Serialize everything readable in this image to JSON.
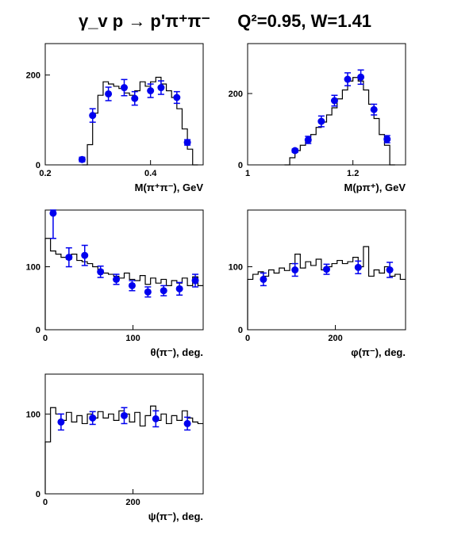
{
  "title": {
    "reaction": "γ_v p → p'π⁺π⁻",
    "kinematics": "Q²=0.95, W=1.41"
  },
  "colors": {
    "histogram": "#000000",
    "points": "#0000ee",
    "axes": "#000000"
  },
  "chart_data": [
    {
      "type": "line",
      "xlabel": "M(π⁺π⁻), GeV",
      "xlim": [
        0.2,
        0.5
      ],
      "ylim": [
        0,
        270
      ],
      "xticks": [
        {
          "v": 0.2,
          "label": "0.2"
        },
        {
          "v": 0.4,
          "label": "0.4"
        }
      ],
      "yticks": [
        {
          "v": 0,
          "label": "0"
        },
        {
          "v": 200,
          "label": "200"
        }
      ],
      "series": [
        {
          "kind": "histogram",
          "x": [
            0.27,
            0.28,
            0.29,
            0.3,
            0.31,
            0.32,
            0.33,
            0.34,
            0.35,
            0.36,
            0.37,
            0.38,
            0.39,
            0.4,
            0.41,
            0.42,
            0.43,
            0.44,
            0.45,
            0.46,
            0.47,
            0.48
          ],
          "y": [
            0,
            45,
            115,
            155,
            185,
            180,
            175,
            170,
            160,
            155,
            165,
            185,
            175,
            185,
            195,
            180,
            165,
            150,
            125,
            80,
            35,
            0
          ]
        },
        {
          "kind": "points",
          "x": [
            0.27,
            0.29,
            0.32,
            0.35,
            0.37,
            0.4,
            0.42,
            0.45,
            0.47
          ],
          "y": [
            12,
            110,
            158,
            172,
            148,
            165,
            172,
            150,
            50
          ],
          "err": [
            5,
            15,
            15,
            18,
            15,
            15,
            15,
            13,
            6
          ]
        }
      ]
    },
    {
      "type": "line",
      "xlabel": "M(pπ⁺), GeV",
      "xlim": [
        1.0,
        1.3
      ],
      "ylim": [
        0,
        340
      ],
      "xticks": [
        {
          "v": 1.0,
          "label": "1"
        },
        {
          "v": 1.2,
          "label": "1.2"
        }
      ],
      "yticks": [
        {
          "v": 0,
          "label": "0"
        },
        {
          "v": 200,
          "label": "200"
        }
      ],
      "series": [
        {
          "kind": "histogram",
          "x": [
            1.07,
            1.08,
            1.09,
            1.1,
            1.11,
            1.12,
            1.13,
            1.14,
            1.15,
            1.16,
            1.17,
            1.18,
            1.19,
            1.2,
            1.21,
            1.22,
            1.23,
            1.24,
            1.25,
            1.26,
            1.27
          ],
          "y": [
            0,
            20,
            40,
            55,
            65,
            85,
            105,
            120,
            140,
            160,
            185,
            210,
            235,
            245,
            235,
            210,
            170,
            130,
            85,
            55,
            0
          ]
        },
        {
          "kind": "points",
          "x": [
            1.09,
            1.115,
            1.14,
            1.165,
            1.19,
            1.215,
            1.24,
            1.265
          ],
          "y": [
            40,
            70,
            122,
            180,
            240,
            246,
            155,
            72
          ],
          "err": [
            5,
            10,
            15,
            15,
            18,
            20,
            15,
            10
          ]
        }
      ]
    },
    {
      "type": "line",
      "xlabel": "θ(π⁻), deg.",
      "xlim": [
        0,
        180
      ],
      "ylim": [
        0,
        190
      ],
      "xticks": [
        {
          "v": 0,
          "label": "0"
        },
        {
          "v": 100,
          "label": "100"
        }
      ],
      "yticks": [
        {
          "v": 0,
          "label": "0"
        },
        {
          "v": 100,
          "label": "100"
        }
      ],
      "series": [
        {
          "kind": "histogram",
          "x": [
            0,
            6,
            12,
            18,
            24,
            30,
            36,
            42,
            48,
            54,
            60,
            66,
            72,
            78,
            84,
            90,
            96,
            102,
            108,
            114,
            120,
            126,
            132,
            138,
            144,
            150,
            156,
            162,
            168,
            174
          ],
          "y": [
            145,
            125,
            120,
            115,
            112,
            120,
            110,
            108,
            105,
            100,
            95,
            90,
            88,
            85,
            82,
            90,
            80,
            78,
            86,
            72,
            82,
            74,
            80,
            70,
            78,
            74,
            82,
            70,
            84,
            70
          ]
        },
        {
          "kind": "points",
          "x": [
            9,
            27,
            45,
            63,
            81,
            99,
            117,
            135,
            153,
            171
          ],
          "y": [
            185,
            115,
            118,
            92,
            80,
            70,
            60,
            62,
            65,
            78
          ],
          "err": [
            40,
            15,
            16,
            9,
            8,
            8,
            8,
            8,
            10,
            10
          ]
        }
      ]
    },
    {
      "type": "line",
      "xlabel": "φ(π⁻), deg.",
      "xlim": [
        0,
        360
      ],
      "ylim": [
        0,
        190
      ],
      "xticks": [
        {
          "v": 0,
          "label": "0"
        },
        {
          "v": 200,
          "label": "200"
        }
      ],
      "yticks": [
        {
          "v": 0,
          "label": "0"
        },
        {
          "v": 100,
          "label": "100"
        }
      ],
      "series": [
        {
          "kind": "histogram",
          "x": [
            0,
            12,
            24,
            36,
            48,
            60,
            72,
            84,
            96,
            108,
            120,
            132,
            144,
            156,
            168,
            180,
            192,
            204,
            216,
            228,
            240,
            252,
            264,
            276,
            288,
            300,
            312,
            324,
            336,
            348
          ],
          "y": [
            80,
            88,
            92,
            85,
            95,
            90,
            98,
            94,
            105,
            120,
            98,
            108,
            102,
            112,
            95,
            100,
            105,
            110,
            105,
            108,
            115,
            100,
            132,
            85,
            95,
            90,
            100,
            85,
            88,
            80
          ]
        },
        {
          "kind": "points",
          "x": [
            36,
            108,
            180,
            252,
            324
          ],
          "y": [
            80,
            95,
            96,
            99,
            95
          ],
          "err": [
            10,
            10,
            8,
            10,
            12
          ]
        }
      ]
    },
    {
      "type": "line",
      "xlabel": "ψ(π⁻), deg.",
      "xlim": [
        0,
        360
      ],
      "ylim": [
        0,
        150
      ],
      "xticks": [
        {
          "v": 0,
          "label": "0"
        },
        {
          "v": 200,
          "label": "200"
        }
      ],
      "yticks": [
        {
          "v": 0,
          "label": "0"
        },
        {
          "v": 100,
          "label": "100"
        }
      ],
      "series": [
        {
          "kind": "histogram",
          "x": [
            0,
            12,
            24,
            36,
            48,
            60,
            72,
            84,
            96,
            108,
            120,
            132,
            144,
            156,
            168,
            180,
            192,
            204,
            216,
            228,
            240,
            252,
            264,
            276,
            288,
            300,
            312,
            324,
            336,
            348
          ],
          "y": [
            65,
            108,
            100,
            92,
            102,
            90,
            98,
            88,
            100,
            95,
            103,
            95,
            100,
            92,
            104,
            100,
            90,
            102,
            85,
            98,
            110,
            92,
            100,
            88,
            98,
            92,
            104,
            95,
            90,
            88
          ]
        },
        {
          "kind": "points",
          "x": [
            36,
            108,
            180,
            252,
            324
          ],
          "y": [
            90,
            95,
            98,
            94,
            88
          ],
          "err": [
            10,
            8,
            10,
            10,
            8
          ]
        }
      ]
    }
  ]
}
